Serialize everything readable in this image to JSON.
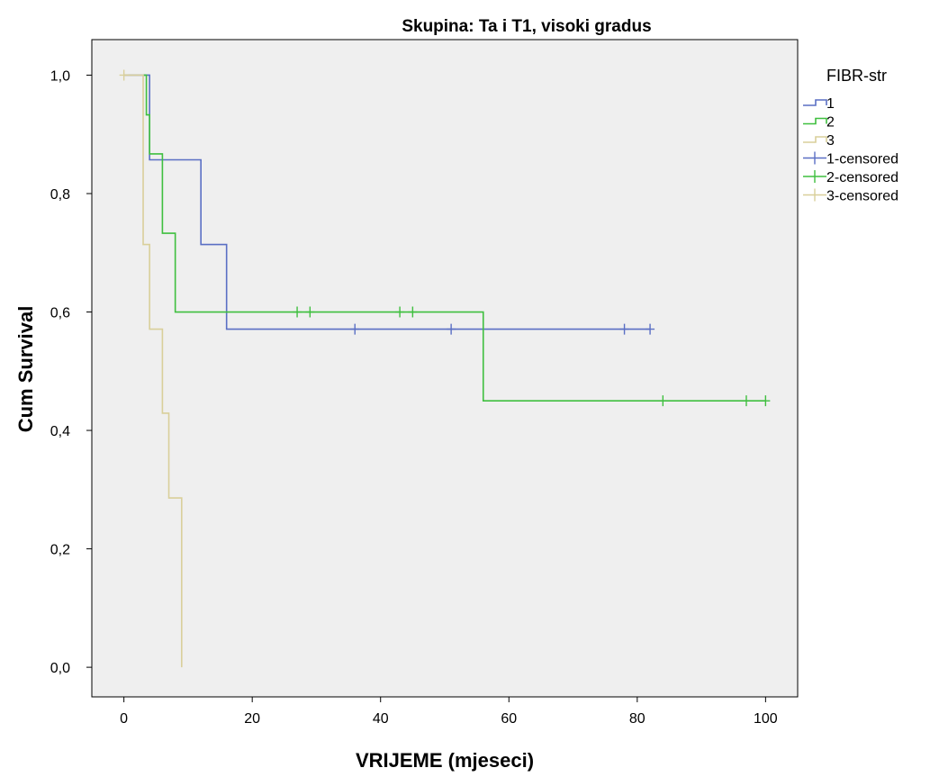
{
  "chart_data": {
    "type": "line",
    "subtype": "kaplan-meier",
    "title": "Skupina: Ta i T1, visoki gradus",
    "xlabel": "VRIJEME (mjeseci)",
    "ylabel": "Cum Survival",
    "xlim": [
      -5,
      105
    ],
    "ylim": [
      -0.05,
      1.06
    ],
    "xticks": [
      0,
      20,
      40,
      60,
      80,
      100
    ],
    "xtick_labels": [
      "0",
      "20",
      "40",
      "60",
      "80",
      "100"
    ],
    "yticks": [
      0.0,
      0.2,
      0.4,
      0.6,
      0.8,
      1.0
    ],
    "ytick_labels": [
      "0,0",
      "0,2",
      "0,4",
      "0,6",
      "0,8",
      "1,0"
    ],
    "grid": false,
    "background": "#efefef",
    "legend": {
      "title": "FIBR-str",
      "position": "right",
      "entries": [
        {
          "label": "1",
          "color": "#5a6fc4",
          "kind": "step"
        },
        {
          "label": "2",
          "color": "#3fbf3f",
          "kind": "step"
        },
        {
          "label": "3",
          "color": "#d9cf9a",
          "kind": "step"
        },
        {
          "label": "1-censored",
          "color": "#5a6fc4",
          "kind": "censor"
        },
        {
          "label": "2-censored",
          "color": "#3fbf3f",
          "kind": "censor"
        },
        {
          "label": "3-censored",
          "color": "#d9cf9a",
          "kind": "censor"
        }
      ]
    },
    "series": [
      {
        "name": "1",
        "color": "#5a6fc4",
        "steps": [
          [
            0,
            1.0
          ],
          [
            4,
            0.857
          ],
          [
            12,
            0.714
          ],
          [
            16,
            0.571
          ],
          [
            82,
            0.571
          ]
        ],
        "censored": [
          [
            36,
            0.571
          ],
          [
            51,
            0.571
          ],
          [
            78,
            0.571
          ],
          [
            82,
            0.571
          ]
        ]
      },
      {
        "name": "2",
        "color": "#3fbf3f",
        "steps": [
          [
            3,
            1.0
          ],
          [
            3.5,
            0.933
          ],
          [
            4,
            0.867
          ],
          [
            6,
            0.733
          ],
          [
            8,
            0.6
          ],
          [
            56,
            0.45
          ],
          [
            100,
            0.45
          ]
        ],
        "censored": [
          [
            27,
            0.6
          ],
          [
            29,
            0.6
          ],
          [
            43,
            0.6
          ],
          [
            45,
            0.6
          ],
          [
            84,
            0.45
          ],
          [
            97,
            0.45
          ],
          [
            100,
            0.45
          ]
        ]
      },
      {
        "name": "3",
        "color": "#d9cf9a",
        "steps": [
          [
            0,
            1.0
          ],
          [
            3,
            0.714
          ],
          [
            4,
            0.571
          ],
          [
            6,
            0.429
          ],
          [
            7,
            0.286
          ],
          [
            9,
            0.0
          ]
        ],
        "censored": [
          [
            0,
            1.0
          ]
        ]
      }
    ]
  }
}
